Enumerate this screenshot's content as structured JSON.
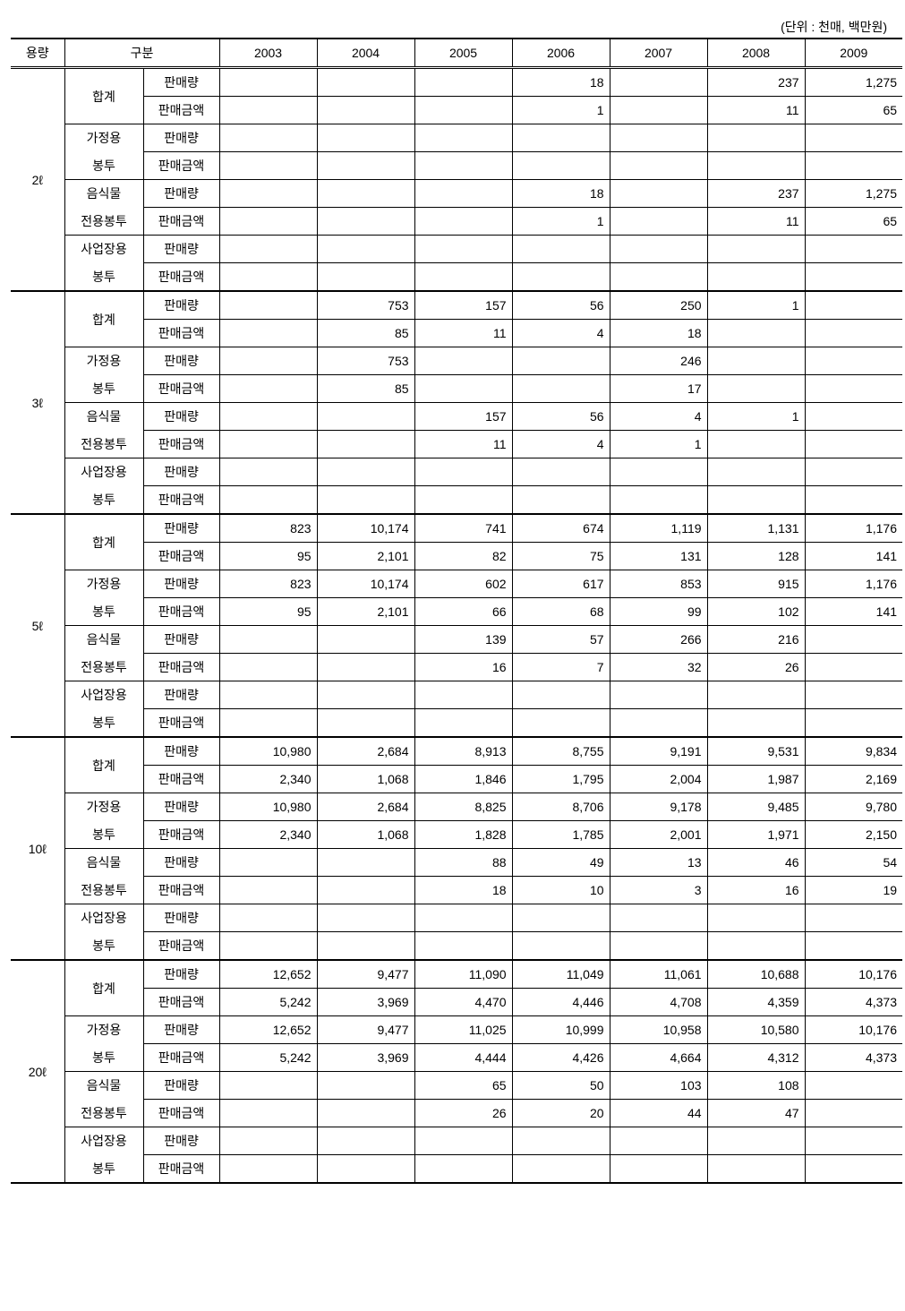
{
  "unit_note": "(단위 : 천매, 백만원)",
  "headers": {
    "capacity": "용량",
    "category": "구분",
    "years": [
      "2003",
      "2004",
      "2005",
      "2006",
      "2007",
      "2008",
      "2009"
    ]
  },
  "labels": {
    "total": "합계",
    "home1": "가정용",
    "home2": "봉투",
    "food1": "음식물",
    "food2": "전용봉투",
    "biz1": "사업장용",
    "biz2": "봉투",
    "qty": "판매량",
    "amt": "판매금액"
  },
  "capacities": [
    "2ℓ",
    "3ℓ",
    "5ℓ",
    "10ℓ",
    "20ℓ"
  ],
  "data": {
    "2ℓ": {
      "total": {
        "qty": [
          "",
          "",
          "",
          "18",
          "",
          "237",
          "1,275"
        ],
        "amt": [
          "",
          "",
          "",
          "1",
          "",
          "11",
          "65"
        ]
      },
      "home": {
        "qty": [
          "",
          "",
          "",
          "",
          "",
          "",
          ""
        ],
        "amt": [
          "",
          "",
          "",
          "",
          "",
          "",
          ""
        ]
      },
      "food": {
        "qty": [
          "",
          "",
          "",
          "18",
          "",
          "237",
          "1,275"
        ],
        "amt": [
          "",
          "",
          "",
          "1",
          "",
          "11",
          "65"
        ]
      },
      "biz": {
        "qty": [
          "",
          "",
          "",
          "",
          "",
          "",
          ""
        ],
        "amt": [
          "",
          "",
          "",
          "",
          "",
          "",
          ""
        ]
      }
    },
    "3ℓ": {
      "total": {
        "qty": [
          "",
          "753",
          "157",
          "56",
          "250",
          "1",
          ""
        ],
        "amt": [
          "",
          "85",
          "11",
          "4",
          "18",
          "",
          ""
        ]
      },
      "home": {
        "qty": [
          "",
          "753",
          "",
          "",
          "246",
          "",
          ""
        ],
        "amt": [
          "",
          "85",
          "",
          "",
          "17",
          "",
          ""
        ]
      },
      "food": {
        "qty": [
          "",
          "",
          "157",
          "56",
          "4",
          "1",
          ""
        ],
        "amt": [
          "",
          "",
          "11",
          "4",
          "1",
          "",
          ""
        ]
      },
      "biz": {
        "qty": [
          "",
          "",
          "",
          "",
          "",
          "",
          ""
        ],
        "amt": [
          "",
          "",
          "",
          "",
          "",
          "",
          ""
        ]
      }
    },
    "5ℓ": {
      "total": {
        "qty": [
          "823",
          "10,174",
          "741",
          "674",
          "1,119",
          "1,131",
          "1,176"
        ],
        "amt": [
          "95",
          "2,101",
          "82",
          "75",
          "131",
          "128",
          "141"
        ]
      },
      "home": {
        "qty": [
          "823",
          "10,174",
          "602",
          "617",
          "853",
          "915",
          "1,176"
        ],
        "amt": [
          "95",
          "2,101",
          "66",
          "68",
          "99",
          "102",
          "141"
        ]
      },
      "food": {
        "qty": [
          "",
          "",
          "139",
          "57",
          "266",
          "216",
          ""
        ],
        "amt": [
          "",
          "",
          "16",
          "7",
          "32",
          "26",
          ""
        ]
      },
      "biz": {
        "qty": [
          "",
          "",
          "",
          "",
          "",
          "",
          ""
        ],
        "amt": [
          "",
          "",
          "",
          "",
          "",
          "",
          ""
        ]
      }
    },
    "10ℓ": {
      "total": {
        "qty": [
          "10,980",
          "2,684",
          "8,913",
          "8,755",
          "9,191",
          "9,531",
          "9,834"
        ],
        "amt": [
          "2,340",
          "1,068",
          "1,846",
          "1,795",
          "2,004",
          "1,987",
          "2,169"
        ]
      },
      "home": {
        "qty": [
          "10,980",
          "2,684",
          "8,825",
          "8,706",
          "9,178",
          "9,485",
          "9,780"
        ],
        "amt": [
          "2,340",
          "1,068",
          "1,828",
          "1,785",
          "2,001",
          "1,971",
          "2,150"
        ]
      },
      "food": {
        "qty": [
          "",
          "",
          "88",
          "49",
          "13",
          "46",
          "54"
        ],
        "amt": [
          "",
          "",
          "18",
          "10",
          "3",
          "16",
          "19"
        ]
      },
      "biz": {
        "qty": [
          "",
          "",
          "",
          "",
          "",
          "",
          ""
        ],
        "amt": [
          "",
          "",
          "",
          "",
          "",
          "",
          ""
        ]
      }
    },
    "20ℓ": {
      "total": {
        "qty": [
          "12,652",
          "9,477",
          "11,090",
          "11,049",
          "11,061",
          "10,688",
          "10,176"
        ],
        "amt": [
          "5,242",
          "3,969",
          "4,470",
          "4,446",
          "4,708",
          "4,359",
          "4,373"
        ]
      },
      "home": {
        "qty": [
          "12,652",
          "9,477",
          "11,025",
          "10,999",
          "10,958",
          "10,580",
          "10,176"
        ],
        "amt": [
          "5,242",
          "3,969",
          "4,444",
          "4,426",
          "4,664",
          "4,312",
          "4,373"
        ]
      },
      "food": {
        "qty": [
          "",
          "",
          "65",
          "50",
          "103",
          "108",
          ""
        ],
        "amt": [
          "",
          "",
          "26",
          "20",
          "44",
          "47",
          ""
        ]
      },
      "biz": {
        "qty": [
          "",
          "",
          "",
          "",
          "",
          "",
          ""
        ],
        "amt": [
          "",
          "",
          "",
          "",
          "",
          "",
          ""
        ]
      }
    }
  }
}
